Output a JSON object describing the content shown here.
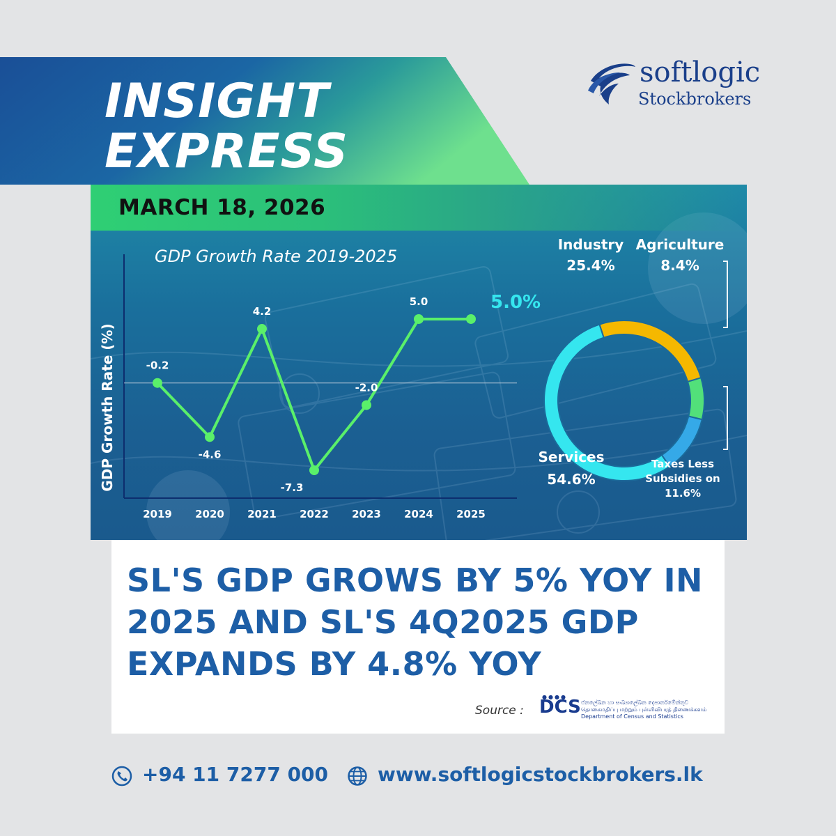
{
  "banner": {
    "title_line1": "INSIGHT",
    "title_line2": "EXPRESS",
    "date": "MARCH 18, 2026"
  },
  "logo": {
    "brand": "softlogic",
    "sub": "Stockbrokers"
  },
  "colors": {
    "banner_blue": "#1a5a9e",
    "banner_green": "#3ed27c",
    "line_green": "#5af06a",
    "headline_blue": "#1d5ea6",
    "industry": "#f5b800",
    "agriculture": "#52e07a",
    "taxes": "#35a9e8",
    "services": "#35e6ef"
  },
  "chart_data": [
    {
      "type": "line",
      "title": "GDP Growth Rate 2019-2025",
      "xlabel": "",
      "ylabel": "GDP Growth Rate (%)",
      "categories": [
        "2019",
        "2020",
        "2021",
        "2022",
        "2023",
        "2024",
        "2025"
      ],
      "values": [
        -0.2,
        -4.6,
        4.2,
        -7.3,
        -2.0,
        5.0,
        5.0
      ],
      "value_labels": [
        "-0.2",
        "-4.6",
        "4.2",
        "-7.3",
        "-2.0",
        "5.0",
        ""
      ],
      "callout": "5.0%",
      "ylim": [
        -9,
        8
      ],
      "grid": false
    },
    {
      "type": "pie",
      "donut": true,
      "slices": [
        {
          "name": "Industry",
          "value": 25.4,
          "label": "25.4%",
          "color": "#f5b800"
        },
        {
          "name": "Agriculture",
          "value": 8.4,
          "label": "8.4%",
          "color": "#52e07a"
        },
        {
          "name": "Taxes Less Subsidies on",
          "value": 11.6,
          "label": "11.6%",
          "color": "#35a9e8"
        },
        {
          "name": "Services",
          "value": 54.6,
          "label": "54.6%",
          "color": "#35e6ef"
        }
      ]
    }
  ],
  "headline": "SL'S GDP GROWS BY 5% YOY IN 2025 AND SL'S 4Q2025 GDP EXPANDS BY 4.8% YOY",
  "source": {
    "label": "Source :",
    "logo_text": "DCS",
    "org_sinhala": "ජනලේඛන හා සංඛ්‍යාලේඛන දෙපාර්තමේන්තුව",
    "org_tamil": "தொகைமதிப்பு மற்றும் புள்ளிவிபரத் திணைக்களம்",
    "org_english": "Department of Census and Statistics"
  },
  "footer": {
    "phone": "+94 11 7277 000",
    "website": "www.softlogicstockbrokers.lk",
    "phone_icon": "phone-icon",
    "web_icon": "globe-icon"
  }
}
